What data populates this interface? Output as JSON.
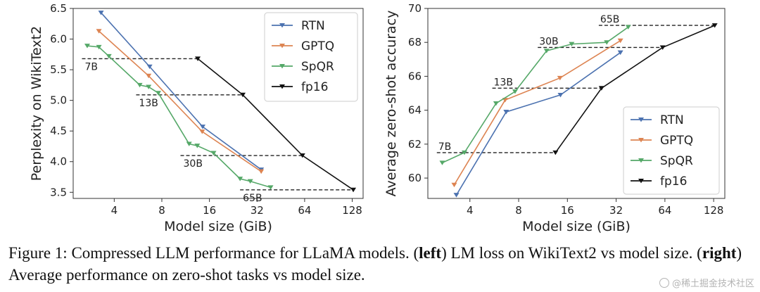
{
  "chart_data": [
    {
      "type": "line",
      "panel": "left",
      "xlabel": "Model size (GiB)",
      "ylabel": "Perplexity on WikiText2",
      "x_scale": "log2",
      "xlim": [
        2.2,
        150
      ],
      "ylim": [
        3.4,
        6.5
      ],
      "xticks": [
        4,
        8,
        16,
        32,
        64,
        128
      ],
      "xtick_labels": [
        "4",
        "8",
        "16",
        "32",
        "64",
        "128"
      ],
      "yticks": [
        3.5,
        4.0,
        4.5,
        5.0,
        5.5,
        6.0,
        6.5
      ],
      "ytick_labels": [
        "3.5",
        "4.0",
        "4.5",
        "5.0",
        "5.5",
        "6.0",
        "6.5"
      ],
      "legend_position": "top-right",
      "series": [
        {
          "name": "RTN",
          "color": "#4c72b0",
          "x": [
            3.3,
            6.7,
            14.5,
            34
          ],
          "y": [
            6.43,
            5.55,
            4.57,
            3.87
          ]
        },
        {
          "name": "GPTQ",
          "color": "#dd8452",
          "x": [
            3.2,
            6.6,
            14.4,
            34
          ],
          "y": [
            6.13,
            5.4,
            4.49,
            3.84
          ]
        },
        {
          "name": "SpQR",
          "color": "#55a868",
          "x": [
            2.7,
            3.2,
            3.7,
            5.8,
            6.6,
            7.6,
            11.9,
            13.4,
            17,
            25,
            29,
            39
          ],
          "y": [
            5.89,
            5.87,
            5.72,
            5.25,
            5.22,
            5.12,
            4.29,
            4.26,
            4.14,
            3.72,
            3.68,
            3.58
          ]
        },
        {
          "name": "fp16",
          "color": "#111111",
          "x": [
            13.5,
            26,
            62,
            130
          ],
          "y": [
            5.68,
            5.09,
            4.1,
            3.54
          ]
        }
      ],
      "reference_lines": [
        {
          "label": "7B",
          "y": 5.68,
          "x_from": 2.5,
          "x_to": 13.5
        },
        {
          "label": "13B",
          "y": 5.09,
          "x_from": 5.5,
          "x_to": 26
        },
        {
          "label": "30B",
          "y": 4.1,
          "x_from": 10.5,
          "x_to": 62
        },
        {
          "label": "65B",
          "y": 3.54,
          "x_from": 25,
          "x_to": 130
        }
      ]
    },
    {
      "type": "line",
      "panel": "right",
      "xlabel": "Model size (GiB)",
      "ylabel": "Average zero-shot accuracy",
      "x_scale": "log2",
      "xlim": [
        2.2,
        150
      ],
      "ylim": [
        58.8,
        70
      ],
      "xticks": [
        4,
        8,
        16,
        32,
        64,
        128
      ],
      "xtick_labels": [
        "4",
        "8",
        "16",
        "32",
        "64",
        "128"
      ],
      "yticks": [
        60,
        62,
        64,
        66,
        68,
        70
      ],
      "ytick_labels": [
        "60",
        "62",
        "64",
        "66",
        "68",
        "70"
      ],
      "legend_position": "lower-right",
      "series": [
        {
          "name": "RTN",
          "color": "#4c72b0",
          "x": [
            3.3,
            6.7,
            14.5,
            34
          ],
          "y": [
            59.0,
            63.9,
            64.9,
            67.4
          ]
        },
        {
          "name": "GPTQ",
          "color": "#dd8452",
          "x": [
            3.2,
            6.6,
            14.4,
            34
          ],
          "y": [
            59.6,
            64.6,
            65.9,
            68.1
          ]
        },
        {
          "name": "SpQR",
          "color": "#55a868",
          "x": [
            2.7,
            3.7,
            5.8,
            7.6,
            11.9,
            17,
            28,
            38
          ],
          "y": [
            60.9,
            61.5,
            64.4,
            65.1,
            67.5,
            67.9,
            68.0,
            68.9
          ]
        },
        {
          "name": "fp16",
          "color": "#111111",
          "x": [
            13.5,
            26,
            62,
            130
          ],
          "y": [
            61.5,
            65.3,
            67.7,
            69.0
          ]
        }
      ],
      "reference_lines": [
        {
          "label": "7B",
          "y": 61.5,
          "x_from": 2.5,
          "x_to": 13.5
        },
        {
          "label": "13B",
          "y": 65.3,
          "x_from": 5.5,
          "x_to": 26
        },
        {
          "label": "30B",
          "y": 67.7,
          "x_from": 10.5,
          "x_to": 62
        },
        {
          "label": "65B",
          "y": 69.0,
          "x_from": 25,
          "x_to": 130
        }
      ]
    }
  ],
  "caption": {
    "prefix": "Figure 1: Compressed LLM performance for LLaMA models. (",
    "bold1": "left",
    "mid1": ") LM loss on WikiText2 vs model size. (",
    "bold2": "right",
    "mid2": ") Average performance on zero-shot tasks vs model size."
  },
  "watermark": {
    "text": "@稀土掘金技术社区"
  }
}
